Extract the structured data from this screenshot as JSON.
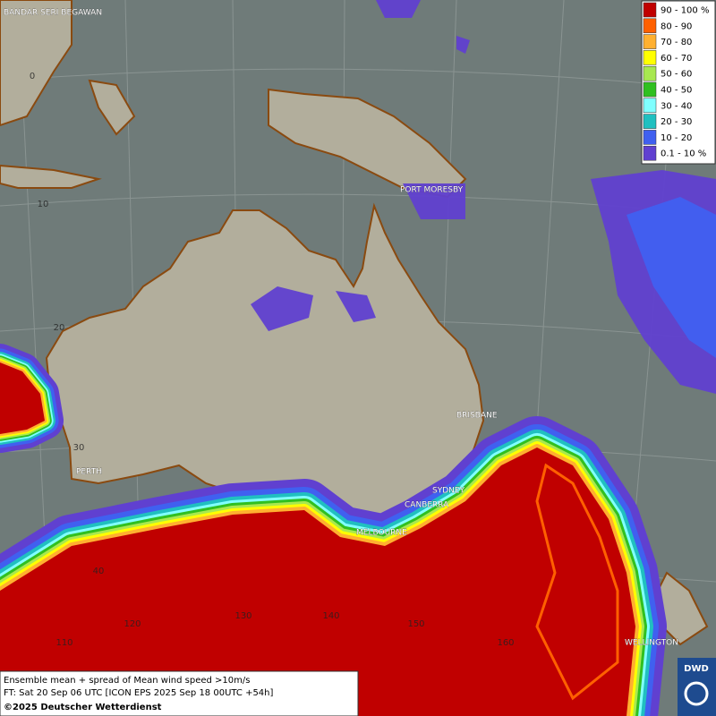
{
  "legend": {
    "items": [
      {
        "label": "90 - 100 %",
        "color": "#c00000"
      },
      {
        "label": "80 - 90",
        "color": "#ff6000"
      },
      {
        "label": "70 - 80",
        "color": "#ffb030"
      },
      {
        "label": "60 - 70",
        "color": "#ffff00"
      },
      {
        "label": "50 - 60",
        "color": "#a8e850"
      },
      {
        "label": "40 - 50",
        "color": "#30c020"
      },
      {
        "label": "30 - 40",
        "color": "#80ffff"
      },
      {
        "label": "20 - 30",
        "color": "#20c0c0"
      },
      {
        "label": "10 - 20",
        "color": "#4060f0"
      },
      {
        "label": "0.1 - 10 %",
        "color": "#6040d0"
      }
    ]
  },
  "cities": [
    "BANDAR SERI BEGAWAN",
    "PORT MORESBY",
    "BRISBANE",
    "PERTH",
    "SYDNEY",
    "CANBERRA",
    "MELBOURNE",
    "WELLINGTON"
  ],
  "grid_labels": [
    "0",
    "10",
    "20",
    "30",
    "40",
    "110",
    "120",
    "130",
    "140",
    "150",
    "160"
  ],
  "caption": {
    "line1": "Ensemble mean + spread of Mean wind speed >10m/s",
    "line2": "FT: Sat 20 Sep 06 UTC [ICON EPS 2025 Sep 18 00UTC +54h]",
    "line3": "©2025 Deutscher Wetterdienst"
  },
  "logo": "DWD"
}
